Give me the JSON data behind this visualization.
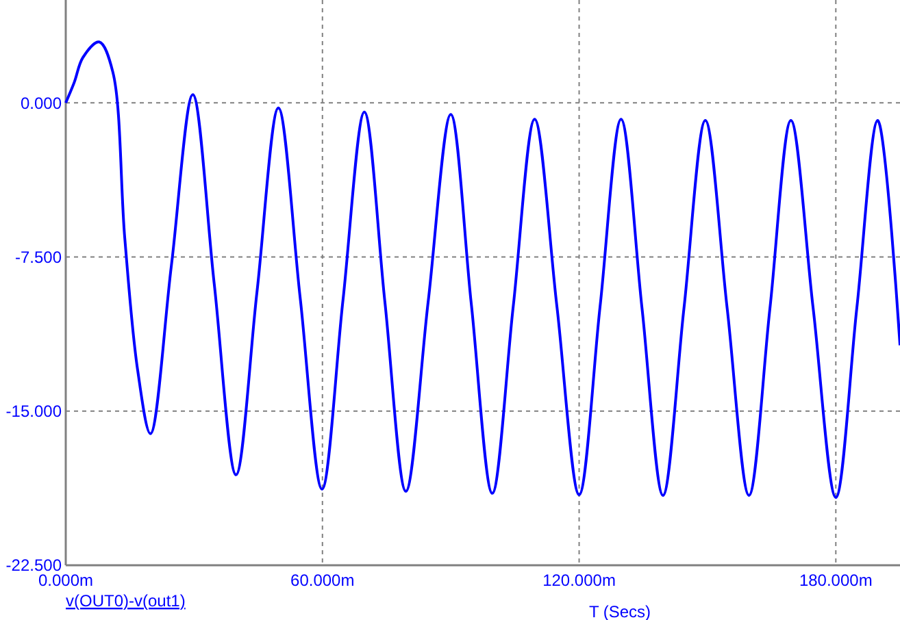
{
  "chart_data": {
    "type": "line",
    "xlabel": "T (Secs)",
    "legend": "bottom left",
    "grid": true,
    "line_style": "solid",
    "marker": "none",
    "xlim": [
      0,
      195
    ],
    "ylim": [
      -22.5,
      5
    ],
    "xticks": [
      {
        "value": 0,
        "label": "0.000m"
      },
      {
        "value": 60,
        "label": "60.000m"
      },
      {
        "value": 120,
        "label": "120.000m"
      },
      {
        "value": 180,
        "label": "180.000m"
      }
    ],
    "yticks": [
      {
        "value": 0,
        "label": "0.000"
      },
      {
        "value": -7.5,
        "label": "-7.500"
      },
      {
        "value": -15,
        "label": "-15.000"
      },
      {
        "value": -22.5,
        "label": "-22.500"
      }
    ],
    "series": [
      {
        "name": "v(OUT0)-v(out1)",
        "color": "#0000ff",
        "x": [
          0,
          2,
          4,
          7.8,
          11,
          13.8,
          16.8,
          19.8,
          24.7,
          29.7,
          34.7,
          39.8,
          44.7,
          49.7,
          54.8,
          59.9,
          64.8,
          69.8,
          74.6,
          79.5,
          84.7,
          90,
          94.8,
          99.7,
          104.6,
          109.6,
          114.8,
          120,
          124.9,
          129.8,
          134.7,
          139.6,
          144.5,
          149.5,
          154.6,
          159.7,
          164.6,
          169.5,
          174.7,
          180,
          184.9,
          189.8,
          195
        ],
        "values": [
          0,
          1,
          2.2,
          2.96,
          1.5,
          -6.6,
          -13,
          -16.1,
          -7.9,
          0.4,
          -8.8,
          -18.1,
          -9.2,
          -0.25,
          -9.5,
          -18.8,
          -9.6,
          -0.45,
          -9.7,
          -18.9,
          -9.7,
          -0.57,
          -9.8,
          -19,
          -9.9,
          -0.8,
          -9.9,
          -19.07,
          -9.9,
          -0.8,
          -10,
          -19.1,
          -10,
          -0.86,
          -10,
          -19.1,
          -10,
          -0.86,
          -10,
          -19.2,
          -10,
          -0.86,
          -11.8
        ]
      }
    ]
  }
}
